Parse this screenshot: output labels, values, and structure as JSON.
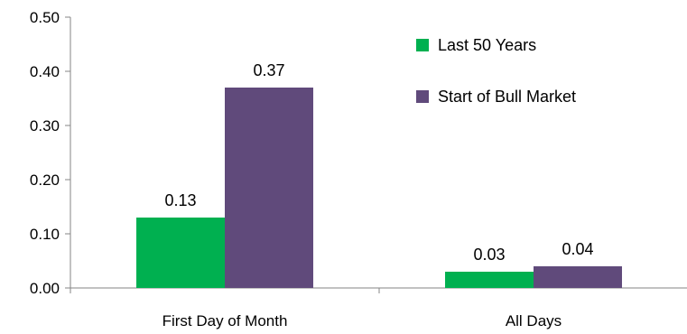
{
  "chart_data": {
    "type": "bar",
    "title": "",
    "xlabel": "",
    "ylabel": "",
    "categories": [
      "First Day of Month",
      "All Days"
    ],
    "series": [
      {
        "name": "Last 50 Years",
        "values": [
          0.13,
          0.03
        ],
        "color": "#00b050"
      },
      {
        "name": "Start of Bull Market",
        "values": [
          0.37,
          0.04
        ],
        "color": "#604a7b"
      }
    ],
    "data_labels": [
      [
        "0.13",
        "0.03"
      ],
      [
        "0.37",
        "0.04"
      ]
    ],
    "ylim": [
      0,
      0.5
    ],
    "yticks": [
      "0.00",
      "0.10",
      "0.20",
      "0.30",
      "0.40",
      "0.50"
    ],
    "grid": false,
    "legend_position": "top-right"
  }
}
